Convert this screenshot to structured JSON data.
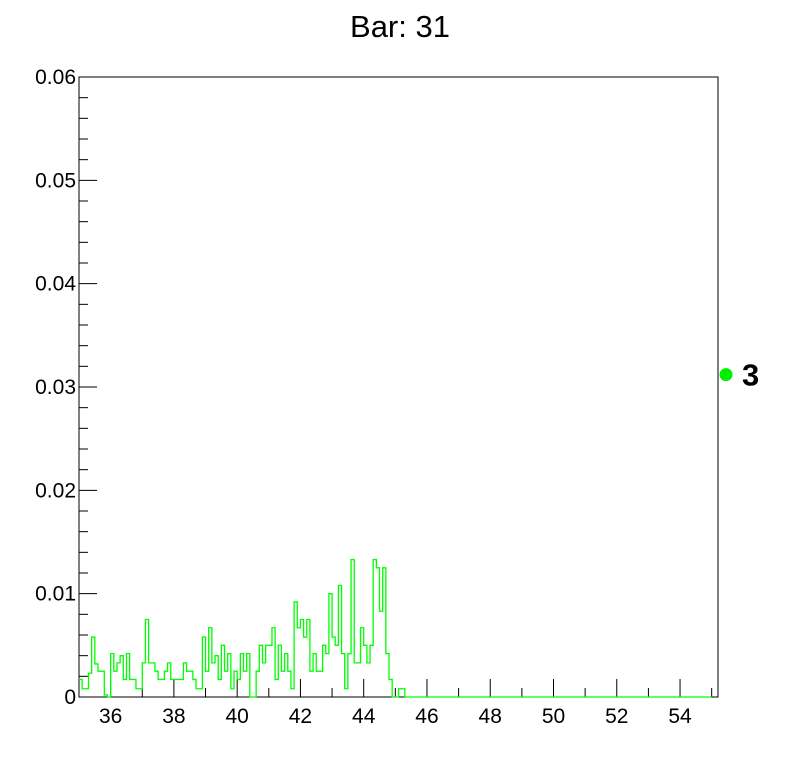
{
  "chart_data": {
    "type": "bar",
    "title": "Bar: 31",
    "xlabel": "",
    "ylabel": "",
    "xlim": [
      35,
      55.2
    ],
    "ylim": [
      0,
      0.06
    ],
    "x_ticks": [
      36,
      38,
      40,
      42,
      44,
      46,
      48,
      50,
      52,
      54
    ],
    "x_tick_labels": [
      "36",
      "38",
      "40",
      "42",
      "44",
      "46",
      "48",
      "50",
      "52",
      "54"
    ],
    "y_ticks": [
      0,
      0.01,
      0.02,
      0.03,
      0.04,
      0.05,
      0.06
    ],
    "y_tick_labels": [
      "0",
      "0.01",
      "0.02",
      "0.03",
      "0.04",
      "0.05",
      "0.06"
    ],
    "grid": false,
    "bin_width": 0.1,
    "series": [
      {
        "color": "#00ff00",
        "bin_edges_start": 35.0,
        "values": [
          0.0017,
          0.0008,
          0.0008,
          0.0023,
          0.0058,
          0.0032,
          0.0025,
          0.0025,
          0.0002,
          0.0,
          0.0042,
          0.0025,
          0.0033,
          0.004,
          0.0017,
          0.0042,
          0.0017,
          0.0017,
          0.0008,
          0.0008,
          0.0033,
          0.0075,
          0.0033,
          0.0033,
          0.0025,
          0.0017,
          0.0017,
          0.0025,
          0.0033,
          0.0017,
          0.0017,
          0.0017,
          0.0017,
          0.0033,
          0.0025,
          0.0025,
          0.0017,
          0.0008,
          0.0008,
          0.0058,
          0.0025,
          0.0067,
          0.0033,
          0.004,
          0.0017,
          0.005,
          0.0025,
          0.0042,
          0.0008,
          0.0025,
          0.0017,
          0.0042,
          0.0025,
          0.0042,
          0.0,
          0.0,
          0.0025,
          0.005,
          0.0033,
          0.005,
          0.005,
          0.0067,
          0.0017,
          0.005,
          0.0025,
          0.0042,
          0.0025,
          0.0008,
          0.0092,
          0.0067,
          0.0075,
          0.0058,
          0.0075,
          0.0025,
          0.0042,
          0.0025,
          0.0025,
          0.005,
          0.0042,
          0.01,
          0.0058,
          0.005,
          0.0108,
          0.0042,
          0.0008,
          0.0042,
          0.0133,
          0.0033,
          0.0033,
          0.0067,
          0.005,
          0.0033,
          0.005,
          0.0133,
          0.0125,
          0.0083,
          0.0125,
          0.0042,
          0.0017,
          0.0,
          0.0,
          0.0008,
          0.0008,
          0.0,
          0.0,
          0.0,
          0.0,
          0.0,
          0.0,
          0.0,
          0.0,
          0.0,
          0.0,
          0.0,
          0.0,
          0.0,
          0.0,
          0.0,
          0.0,
          0.0,
          0.0,
          0.0,
          0.0,
          0.0,
          0.0,
          0.0,
          0.0,
          0.0,
          0.0,
          0.0,
          0.0,
          0.0,
          0.0,
          0.0,
          0.0,
          0.0,
          0.0,
          0.0,
          0.0,
          0.0,
          0.0,
          0.0,
          0.0,
          0.0,
          0.0,
          0.0,
          0.0,
          0.0,
          0.0,
          0.0,
          0.0,
          0.0,
          0.0,
          0.0,
          0.0,
          0.0,
          0.0,
          0.0,
          0.0,
          0.0,
          0.0,
          0.0,
          0.0,
          0.0,
          0.0,
          0.0,
          0.0,
          0.0,
          0.0,
          0.0,
          0.0,
          0.0,
          0.0,
          0.0,
          0.0,
          0.0,
          0.0,
          0.0,
          0.0,
          0.0,
          0.0,
          0.0,
          0.0,
          0.0,
          0.0,
          0.0,
          0.0,
          0.0,
          0.0,
          0.0,
          0.0,
          0.0,
          0.0,
          0.0,
          0.0,
          0.0,
          0.0,
          0.0,
          0.0,
          0.0
        ]
      }
    ],
    "marker": {
      "value": 0.0312,
      "label": "3",
      "color": "#00ee00"
    }
  }
}
